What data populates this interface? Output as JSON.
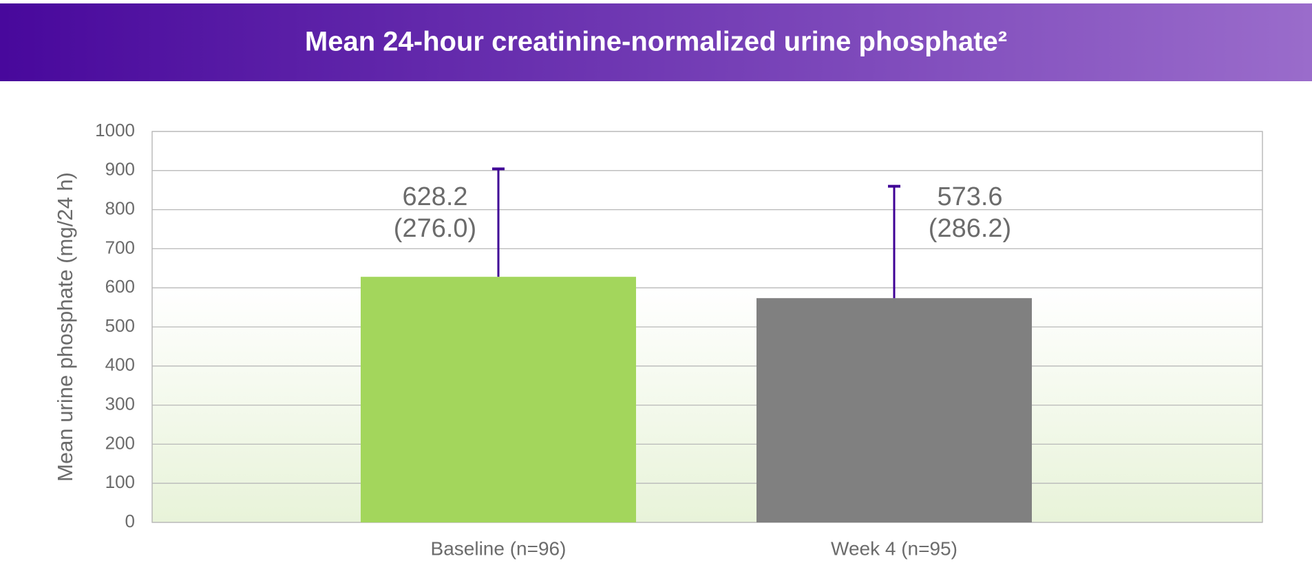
{
  "chart_data": {
    "type": "bar",
    "title": "Mean 24-hour creatinine-normalized urine phosphate²",
    "y_label": "Mean urine phosphate (mg/24 h)",
    "categories": [
      "Baseline (n=96)",
      "Week 4 (n=95)"
    ],
    "values": [
      628.2,
      573.6
    ],
    "errors": [
      276.0,
      286.2
    ],
    "error_labels": [
      "(276.0)",
      "(286.2)"
    ],
    "colors": [
      "#a3d65c",
      "#808080"
    ],
    "error_color": "#3f0096",
    "ylim": [
      0,
      1000
    ],
    "yticks": [
      0,
      100,
      200,
      300,
      400,
      500,
      600,
      700,
      800,
      900,
      1000
    ],
    "grid": true
  }
}
